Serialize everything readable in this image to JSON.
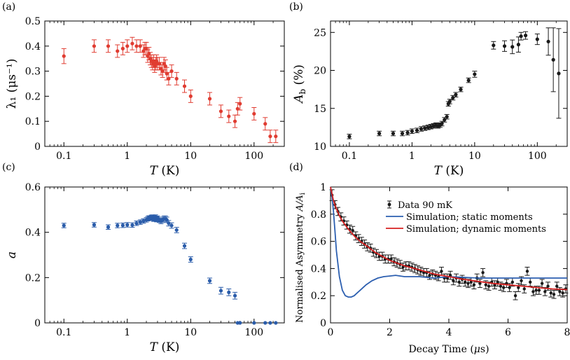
{
  "colors": {
    "red": "#e03c31",
    "black": "#1a1a1a",
    "blue": "#2a5caa",
    "sim_static": "#2c5fb0",
    "sim_dynamic": "#d62020"
  },
  "chart_data": [
    {
      "type": "scatter",
      "panel_label": "(a)",
      "xlabel_italic": "T",
      "xlabel_unit": " (K)",
      "ylabel": "λ₁ (μs⁻¹)",
      "xscale": "log",
      "xlim": [
        0.05,
        300
      ],
      "ylim": [
        0,
        0.5
      ],
      "xticks": [
        0.1,
        1,
        10,
        100
      ],
      "xtick_labels": [
        "0.1",
        "1",
        "10",
        "100"
      ],
      "yticks": [
        0,
        0.1,
        0.2,
        0.3,
        0.4,
        0.5
      ],
      "ytick_labels": [
        "0",
        "0.1",
        "0.2",
        "0.3",
        "0.4",
        "0.5"
      ],
      "color": "#e03c31",
      "x": [
        0.1,
        0.3,
        0.5,
        0.7,
        0.85,
        1.0,
        1.2,
        1.4,
        1.6,
        1.8,
        1.9,
        2.0,
        2.1,
        2.2,
        2.3,
        2.4,
        2.5,
        2.6,
        2.7,
        2.8,
        2.9,
        3.0,
        3.2,
        3.4,
        3.6,
        3.8,
        4.0,
        4.2,
        4.5,
        5.0,
        6.0,
        8.0,
        10,
        20,
        30,
        40,
        50,
        55,
        60,
        100,
        150,
        180,
        220
      ],
      "y": [
        0.36,
        0.4,
        0.4,
        0.38,
        0.39,
        0.4,
        0.41,
        0.4,
        0.4,
        0.38,
        0.39,
        0.39,
        0.36,
        0.37,
        0.35,
        0.34,
        0.33,
        0.34,
        0.32,
        0.33,
        0.34,
        0.33,
        0.33,
        0.31,
        0.3,
        0.33,
        0.32,
        0.29,
        0.27,
        0.3,
        0.27,
        0.24,
        0.2,
        0.19,
        0.14,
        0.12,
        0.1,
        0.15,
        0.17,
        0.13,
        0.09,
        0.04,
        0.04
      ],
      "yerr": [
        0.03,
        0.025,
        0.025,
        0.025,
        0.025,
        0.025,
        0.025,
        0.025,
        0.025,
        0.025,
        0.025,
        0.025,
        0.025,
        0.025,
        0.025,
        0.025,
        0.025,
        0.025,
        0.025,
        0.025,
        0.025,
        0.025,
        0.025,
        0.025,
        0.025,
        0.025,
        0.025,
        0.025,
        0.025,
        0.025,
        0.025,
        0.025,
        0.025,
        0.025,
        0.025,
        0.025,
        0.025,
        0.025,
        0.025,
        0.025,
        0.025,
        0.025,
        0.025
      ]
    },
    {
      "type": "scatter",
      "panel_label": "(b)",
      "xlabel_italic": "T",
      "xlabel_unit": " (K)",
      "ylabel_italic": "A",
      "ylabel_sub": "b",
      "ylabel_unit": " (%)",
      "xscale": "log",
      "xlim": [
        0.05,
        300
      ],
      "ylim": [
        10,
        26.5
      ],
      "xticks": [
        0.1,
        1,
        10,
        100
      ],
      "xtick_labels": [
        "0.1",
        "1",
        "10",
        "100"
      ],
      "yticks": [
        10,
        15,
        20,
        25
      ],
      "ytick_labels": [
        "10",
        "15",
        "20",
        "25"
      ],
      "color": "#1a1a1a",
      "x": [
        0.1,
        0.3,
        0.5,
        0.7,
        0.85,
        1.0,
        1.2,
        1.4,
        1.6,
        1.8,
        2.0,
        2.2,
        2.4,
        2.6,
        2.8,
        3.0,
        3.3,
        3.6,
        3.8,
        4.0,
        4.5,
        5.0,
        6.0,
        8.0,
        10,
        20,
        30,
        40,
        50,
        55,
        65,
        100,
        150,
        180,
        220
      ],
      "y": [
        11.3,
        11.7,
        11.7,
        11.7,
        11.8,
        12.0,
        12.1,
        12.3,
        12.4,
        12.5,
        12.6,
        12.7,
        12.8,
        12.7,
        12.8,
        13.0,
        13.5,
        13.9,
        15.6,
        15.9,
        16.4,
        16.8,
        17.5,
        18.7,
        19.5,
        23.3,
        23.2,
        23.1,
        23.4,
        24.5,
        24.6,
        24.1,
        23.8,
        21.4,
        19.6
      ],
      "yerr": [
        0.3,
        0.3,
        0.3,
        0.3,
        0.3,
        0.3,
        0.3,
        0.3,
        0.3,
        0.3,
        0.3,
        0.3,
        0.3,
        0.3,
        0.3,
        0.3,
        0.3,
        0.3,
        0.3,
        0.3,
        0.3,
        0.3,
        0.3,
        0.3,
        0.4,
        0.5,
        0.7,
        0.9,
        1.0,
        0.5,
        0.5,
        0.7,
        1.8,
        4.2,
        5.9
      ]
    },
    {
      "type": "scatter",
      "panel_label": "(c)",
      "xlabel_italic": "T",
      "xlabel_unit": " (K)",
      "ylabel_italic": "a",
      "xscale": "log",
      "xlim": [
        0.05,
        300
      ],
      "ylim": [
        0,
        0.6
      ],
      "xticks": [
        0.1,
        1,
        10,
        100
      ],
      "xtick_labels": [
        "0.1",
        "1",
        "10",
        "100"
      ],
      "yticks": [
        0,
        0.2,
        0.4,
        0.6
      ],
      "ytick_labels": [
        "0",
        "0.2",
        "0.4",
        "0.6"
      ],
      "color": "#2a5caa",
      "x": [
        0.1,
        0.3,
        0.5,
        0.7,
        0.85,
        1.0,
        1.2,
        1.4,
        1.6,
        1.8,
        2.0,
        2.1,
        2.2,
        2.3,
        2.4,
        2.5,
        2.6,
        2.7,
        2.8,
        2.9,
        3.0,
        3.2,
        3.4,
        3.6,
        3.8,
        4.0,
        4.2,
        4.5,
        5.0,
        6.0,
        8.0,
        10,
        20,
        30,
        40,
        50,
        55,
        60,
        100,
        150,
        180,
        220
      ],
      "y": [
        0.43,
        0.433,
        0.423,
        0.43,
        0.431,
        0.433,
        0.432,
        0.44,
        0.445,
        0.45,
        0.455,
        0.46,
        0.463,
        0.462,
        0.466,
        0.465,
        0.46,
        0.462,
        0.465,
        0.458,
        0.46,
        0.455,
        0.45,
        0.455,
        0.46,
        0.46,
        0.455,
        0.44,
        0.43,
        0.41,
        0.34,
        0.28,
        0.186,
        0.142,
        0.135,
        0.12,
        0,
        0,
        0,
        0,
        0,
        0
      ],
      "yerr": [
        0.01,
        0.01,
        0.01,
        0.01,
        0.01,
        0.01,
        0.01,
        0.01,
        0.01,
        0.01,
        0.01,
        0.01,
        0.01,
        0.01,
        0.01,
        0.012,
        0.012,
        0.012,
        0.012,
        0.012,
        0.012,
        0.012,
        0.012,
        0.012,
        0.012,
        0.012,
        0.012,
        0.012,
        0.012,
        0.012,
        0.012,
        0.012,
        0.012,
        0.015,
        0.015,
        0.015,
        0,
        0,
        0,
        0,
        0,
        0
      ]
    },
    {
      "type": "line",
      "panel_label": "(d)",
      "xlabel": "Decay Time (",
      "xlabel_mu": "μ",
      "xlabel_end": "s)",
      "ylabel": "Normalised Asymmetry ",
      "ylabel_math": "A/A",
      "ylabel_sub": "i",
      "xlim": [
        0,
        8
      ],
      "ylim": [
        0,
        1
      ],
      "xticks": [
        0,
        2,
        4,
        6,
        8
      ],
      "xtick_labels": [
        "0",
        "2",
        "4",
        "6",
        "8"
      ],
      "yticks": [
        0,
        0.2,
        0.4,
        0.6,
        0.8,
        1
      ],
      "ytick_labels": [
        "0",
        "0.2",
        "0.4",
        "0.6",
        "0.8",
        "1"
      ],
      "legend": [
        "Data 90 mK",
        "Simulation; static moments",
        "Simulation; dynamic moments"
      ],
      "legend_position": "top-right",
      "data_points": {
        "x": [
          0.05,
          0.15,
          0.25,
          0.35,
          0.45,
          0.55,
          0.65,
          0.75,
          0.85,
          0.95,
          1.05,
          1.15,
          1.25,
          1.35,
          1.45,
          1.55,
          1.65,
          1.75,
          1.85,
          1.95,
          2.05,
          2.15,
          2.25,
          2.35,
          2.45,
          2.55,
          2.65,
          2.75,
          2.85,
          2.95,
          3.05,
          3.15,
          3.25,
          3.35,
          3.45,
          3.55,
          3.65,
          3.75,
          3.85,
          3.95,
          4.05,
          4.15,
          4.25,
          4.35,
          4.45,
          4.55,
          4.65,
          4.75,
          4.85,
          4.95,
          5.05,
          5.15,
          5.25,
          5.35,
          5.45,
          5.55,
          5.65,
          5.75,
          5.85,
          5.95,
          6.05,
          6.15,
          6.25,
          6.35,
          6.45,
          6.55,
          6.65,
          6.75,
          6.85,
          6.95,
          7.05,
          7.15,
          7.25,
          7.35,
          7.45,
          7.55,
          7.65,
          7.75,
          7.85,
          7.95
        ],
        "y": [
          0.94,
          0.87,
          0.82,
          0.78,
          0.75,
          0.72,
          0.69,
          0.68,
          0.64,
          0.62,
          0.6,
          0.58,
          0.56,
          0.55,
          0.52,
          0.51,
          0.49,
          0.49,
          0.47,
          0.47,
          0.47,
          0.45,
          0.44,
          0.43,
          0.41,
          0.42,
          0.42,
          0.41,
          0.4,
          0.39,
          0.38,
          0.37,
          0.37,
          0.35,
          0.36,
          0.35,
          0.34,
          0.38,
          0.33,
          0.33,
          0.35,
          0.31,
          0.33,
          0.3,
          0.32,
          0.3,
          0.29,
          0.3,
          0.28,
          0.33,
          0.29,
          0.37,
          0.28,
          0.27,
          0.3,
          0.28,
          0.3,
          0.27,
          0.26,
          0.29,
          0.26,
          0.3,
          0.2,
          0.26,
          0.31,
          0.25,
          0.38,
          0.3,
          0.23,
          0.24,
          0.24,
          0.29,
          0.23,
          0.27,
          0.22,
          0.21,
          0.27,
          0.23,
          0.22,
          0.25
        ],
        "yerr": [
          0.04,
          0.03,
          0.03,
          0.03,
          0.03,
          0.03,
          0.03,
          0.03,
          0.03,
          0.03,
          0.03,
          0.03,
          0.03,
          0.03,
          0.03,
          0.03,
          0.03,
          0.03,
          0.03,
          0.03,
          0.03,
          0.03,
          0.03,
          0.03,
          0.03,
          0.03,
          0.03,
          0.03,
          0.03,
          0.03,
          0.03,
          0.03,
          0.03,
          0.03,
          0.03,
          0.03,
          0.03,
          0.03,
          0.03,
          0.03,
          0.03,
          0.03,
          0.03,
          0.03,
          0.03,
          0.03,
          0.03,
          0.03,
          0.03,
          0.03,
          0.03,
          0.03,
          0.03,
          0.03,
          0.03,
          0.03,
          0.03,
          0.03,
          0.03,
          0.03,
          0.03,
          0.03,
          0.03,
          0.03,
          0.03,
          0.03,
          0.03,
          0.03,
          0.03,
          0.03,
          0.03,
          0.03,
          0.03,
          0.03,
          0.03,
          0.03,
          0.03,
          0.03,
          0.03,
          0.03
        ]
      },
      "series": [
        {
          "name": "Simulation; static moments",
          "x": [
            0,
            0.05,
            0.1,
            0.15,
            0.2,
            0.3,
            0.4,
            0.5,
            0.6,
            0.7,
            0.8,
            0.9,
            1.0,
            1.2,
            1.4,
            1.6,
            1.8,
            2.0,
            2.2,
            2.5,
            3.0,
            3.5,
            4.0,
            4.5,
            5.0,
            5.5,
            6.0,
            6.5,
            7.0,
            7.5,
            8.0
          ],
          "y": [
            1.0,
            0.93,
            0.82,
            0.68,
            0.53,
            0.34,
            0.24,
            0.2,
            0.19,
            0.19,
            0.2,
            0.22,
            0.24,
            0.28,
            0.31,
            0.33,
            0.34,
            0.345,
            0.35,
            0.34,
            0.34,
            0.33,
            0.34,
            0.335,
            0.33,
            0.33,
            0.33,
            0.33,
            0.33,
            0.33,
            0.33
          ]
        },
        {
          "name": "Simulation; dynamic moments",
          "x": [
            0,
            0.1,
            0.2,
            0.3,
            0.4,
            0.5,
            0.6,
            0.8,
            1.0,
            1.2,
            1.5,
            2.0,
            2.5,
            3.0,
            3.5,
            4.0,
            4.5,
            5.0,
            5.5,
            6.0,
            6.5,
            7.0,
            7.5,
            8.0
          ],
          "y": [
            1.0,
            0.9,
            0.84,
            0.79,
            0.75,
            0.72,
            0.69,
            0.64,
            0.6,
            0.57,
            0.52,
            0.46,
            0.42,
            0.39,
            0.36,
            0.34,
            0.32,
            0.305,
            0.29,
            0.28,
            0.27,
            0.26,
            0.25,
            0.245
          ]
        }
      ]
    }
  ]
}
